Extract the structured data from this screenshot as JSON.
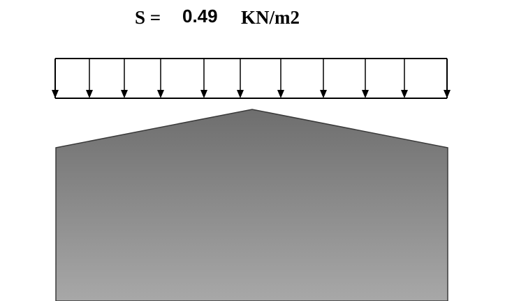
{
  "load_label": {
    "symbol": "S =",
    "value": "0.49",
    "unit": "KN/m2"
  },
  "colors": {
    "stroke": "#000000",
    "building_top": "#6e6e6e",
    "building_bottom": "#a8a8a8",
    "building_edge": "#3a3a3a"
  },
  "icons": {
    "load_arrow": "down-arrow-icon"
  }
}
